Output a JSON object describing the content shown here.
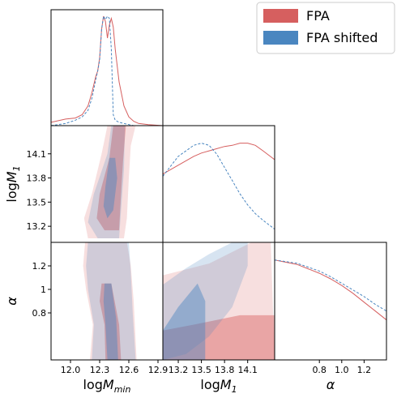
{
  "chart_data": {
    "type": "corner",
    "legend": {
      "placement": "top-right",
      "entries": [
        {
          "label": "FPA",
          "color": "#d65f5f"
        },
        {
          "label": "FPA shifted",
          "color": "#4a86c0"
        }
      ]
    },
    "parameters": [
      {
        "label": "logM_min",
        "label_main": "log",
        "label_M": "M",
        "label_sub": "min",
        "range": [
          11.8,
          12.95
        ],
        "ticks": [
          "12.0",
          "12.3",
          "12.6",
          "12.9"
        ],
        "tick_values": [
          12.0,
          12.3,
          12.6,
          12.9
        ]
      },
      {
        "label": "logM_1",
        "label_main": "log",
        "label_M": "M",
        "label_sub": "1",
        "range": [
          13.0,
          14.45
        ],
        "ticks": [
          "13.2",
          "13.5",
          "13.8",
          "14.1"
        ],
        "tick_values": [
          13.2,
          13.5,
          13.8,
          14.1
        ]
      },
      {
        "label": "α",
        "label_main": "α",
        "label_M": "",
        "label_sub": "",
        "range": [
          0.4,
          1.4
        ],
        "ticks": [
          "0.8",
          "1.0",
          "1.2"
        ],
        "tick_values": [
          0.8,
          1.0,
          1.2
        ]
      }
    ],
    "y_ticks": {
      "row1": {
        "labels": [
          "13.2",
          "13.5",
          "13.8",
          "14.1"
        ],
        "values": [
          13.2,
          13.5,
          13.8,
          14.1
        ]
      },
      "row2": {
        "labels": [
          "0.8",
          "1",
          "1.2"
        ],
        "values": [
          0.8,
          1.0,
          1.2
        ]
      }
    },
    "marginals": {
      "logM_min": {
        "x": [
          11.8,
          11.95,
          12.05,
          12.12,
          12.18,
          12.22,
          12.26,
          12.28,
          12.3,
          12.32,
          12.34,
          12.36,
          12.38,
          12.4,
          12.42,
          12.44,
          12.46,
          12.5,
          12.55,
          12.6,
          12.65,
          12.7,
          12.8,
          12.95
        ],
        "FPA": [
          0.03,
          0.06,
          0.07,
          0.1,
          0.18,
          0.3,
          0.45,
          0.5,
          0.62,
          0.88,
          1.0,
          0.95,
          0.8,
          0.92,
          0.98,
          0.9,
          0.7,
          0.4,
          0.18,
          0.08,
          0.04,
          0.02,
          0.01,
          0.0
        ],
        "FPA_shifted": [
          0.0,
          0.02,
          0.05,
          0.08,
          0.14,
          0.25,
          0.42,
          0.5,
          0.6,
          0.88,
          1.0,
          0.97,
          1.0,
          0.98,
          0.7,
          0.1,
          0.05,
          0.03,
          0.02,
          0.01,
          0.0,
          0.0,
          0.0,
          0.0
        ]
      },
      "logM_1": {
        "x": [
          13.0,
          13.2,
          13.4,
          13.5,
          13.6,
          13.7,
          13.8,
          13.9,
          14.0,
          14.1,
          14.2,
          14.3,
          14.45
        ],
        "FPA": [
          0.62,
          0.7,
          0.78,
          0.81,
          0.83,
          0.85,
          0.87,
          0.88,
          0.9,
          0.9,
          0.88,
          0.83,
          0.75
        ],
        "FPA_shifted": [
          0.6,
          0.78,
          0.88,
          0.9,
          0.88,
          0.8,
          0.68,
          0.56,
          0.44,
          0.34,
          0.26,
          0.2,
          0.12
        ]
      },
      "alpha": {
        "x": [
          0.4,
          0.6,
          0.8,
          0.9,
          1.0,
          1.1,
          1.2,
          1.3,
          1.4
        ],
        "FPA": [
          0.9,
          0.86,
          0.78,
          0.73,
          0.67,
          0.6,
          0.52,
          0.44,
          0.36
        ],
        "FPA_shifted": [
          0.9,
          0.87,
          0.8,
          0.75,
          0.69,
          0.63,
          0.57,
          0.5,
          0.44
        ]
      }
    },
    "contours": {
      "logM1_vs_logMmin": {
        "FPA": {
          "outer": [
            [
              12.3,
              13.05
            ],
            [
              12.55,
              13.05
            ],
            [
              12.58,
              13.3
            ],
            [
              12.6,
              13.8
            ],
            [
              12.62,
              14.2
            ],
            [
              12.67,
              14.45
            ],
            [
              12.38,
              14.45
            ],
            [
              12.32,
              14.1
            ],
            [
              12.22,
              13.6
            ],
            [
              12.14,
              13.3
            ],
            [
              12.18,
              13.05
            ]
          ],
          "inner": [
            [
              12.35,
              13.15
            ],
            [
              12.5,
              13.15
            ],
            [
              12.52,
              13.6
            ],
            [
              12.54,
              14.0
            ],
            [
              12.57,
              14.45
            ],
            [
              12.44,
              14.45
            ],
            [
              12.4,
              14.05
            ],
            [
              12.3,
              13.6
            ],
            [
              12.27,
              13.3
            ]
          ]
        },
        "FPA_shifted": {
          "outer": [
            [
              12.28,
              13.05
            ],
            [
              12.5,
              13.05
            ],
            [
              12.52,
              13.4
            ],
            [
              12.55,
              13.9
            ],
            [
              12.56,
              14.45
            ],
            [
              12.42,
              14.45
            ],
            [
              12.38,
              14.1
            ],
            [
              12.24,
              13.6
            ],
            [
              12.18,
              13.25
            ]
          ],
          "inner": [
            [
              12.38,
              13.3
            ],
            [
              12.44,
              13.4
            ],
            [
              12.48,
              13.8
            ],
            [
              12.46,
              14.05
            ],
            [
              12.4,
              14.05
            ],
            [
              12.36,
              13.7
            ],
            [
              12.34,
              13.45
            ]
          ]
        }
      },
      "alpha_vs_logMmin": {
        "FPA": {
          "outer": [
            [
              12.15,
              1.4
            ],
            [
              12.3,
              1.4
            ],
            [
              12.58,
              1.4
            ],
            [
              12.62,
              1.2
            ],
            [
              12.65,
              0.9
            ],
            [
              12.68,
              0.4
            ],
            [
              12.2,
              0.4
            ],
            [
              12.23,
              0.7
            ],
            [
              12.16,
              1.0
            ],
            [
              12.13,
              1.2
            ]
          ],
          "inner": [
            [
              12.32,
              1.05
            ],
            [
              12.42,
              1.05
            ],
            [
              12.5,
              0.7
            ],
            [
              12.52,
              0.4
            ],
            [
              12.36,
              0.4
            ],
            [
              12.35,
              0.7
            ],
            [
              12.3,
              0.9
            ]
          ]
        },
        "FPA_shifted": {
          "outer": [
            [
              12.18,
              1.4
            ],
            [
              12.6,
              1.4
            ],
            [
              12.62,
              1.15
            ],
            [
              12.64,
              0.8
            ],
            [
              12.67,
              0.4
            ],
            [
              12.22,
              0.4
            ],
            [
              12.24,
              0.7
            ],
            [
              12.18,
              1.0
            ],
            [
              12.16,
              1.2
            ]
          ],
          "inner": [
            [
              12.35,
              1.05
            ],
            [
              12.42,
              1.05
            ],
            [
              12.47,
              0.75
            ],
            [
              12.49,
              0.4
            ],
            [
              12.38,
              0.4
            ],
            [
              12.36,
              0.7
            ],
            [
              12.34,
              0.9
            ]
          ]
        }
      },
      "alpha_vs_logM1": {
        "FPA": {
          "outer": [
            [
              13.0,
              1.12
            ],
            [
              13.6,
              1.22
            ],
            [
              14.15,
              1.4
            ],
            [
              14.4,
              1.4
            ],
            [
              14.45,
              0.4
            ],
            [
              13.0,
              0.4
            ]
          ],
          "inner": [
            [
              13.0,
              0.4
            ],
            [
              13.0,
              0.65
            ],
            [
              13.4,
              0.7
            ],
            [
              14.0,
              0.78
            ],
            [
              14.45,
              0.78
            ],
            [
              14.45,
              0.4
            ]
          ]
        },
        "FPA_shifted": {
          "outer": [
            [
              13.0,
              1.04
            ],
            [
              13.3,
              1.18
            ],
            [
              13.6,
              1.3
            ],
            [
              13.9,
              1.4
            ],
            [
              14.1,
              1.4
            ],
            [
              14.1,
              1.2
            ],
            [
              13.9,
              0.85
            ],
            [
              13.6,
              0.6
            ],
            [
              13.3,
              0.45
            ],
            [
              13.0,
              0.4
            ]
          ],
          "inner": [
            [
              13.0,
              0.65
            ],
            [
              13.2,
              0.85
            ],
            [
              13.45,
              1.05
            ],
            [
              13.55,
              0.9
            ],
            [
              13.55,
              0.4
            ],
            [
              13.0,
              0.4
            ]
          ]
        }
      }
    }
  }
}
